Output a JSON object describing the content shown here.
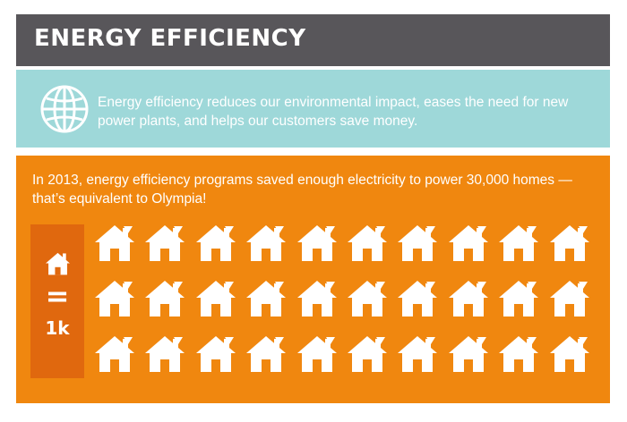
{
  "header": {
    "title": "ENERGY EFFICIENCY"
  },
  "intro": {
    "icon": "globe-icon",
    "text": "Energy efficiency reduces our environmental impact, eases the need for new power plants, and helps our customers save money."
  },
  "stats": {
    "text": "In 2013, energy efficiency programs saved enough electricity to power 30,000 homes — that’s equivalent to Olympia!",
    "legend": {
      "icon": "house-icon",
      "equals": "=",
      "value": "1k"
    },
    "houses": {
      "icon": "house-icon",
      "count": 30,
      "rows": 3,
      "columns": 10
    }
  },
  "colors": {
    "header_bg": "#58565a",
    "intro_bg": "#9ed8d9",
    "stats_bg": "#f0870f",
    "legend_bg": "#e0680e",
    "text": "#ffffff"
  }
}
